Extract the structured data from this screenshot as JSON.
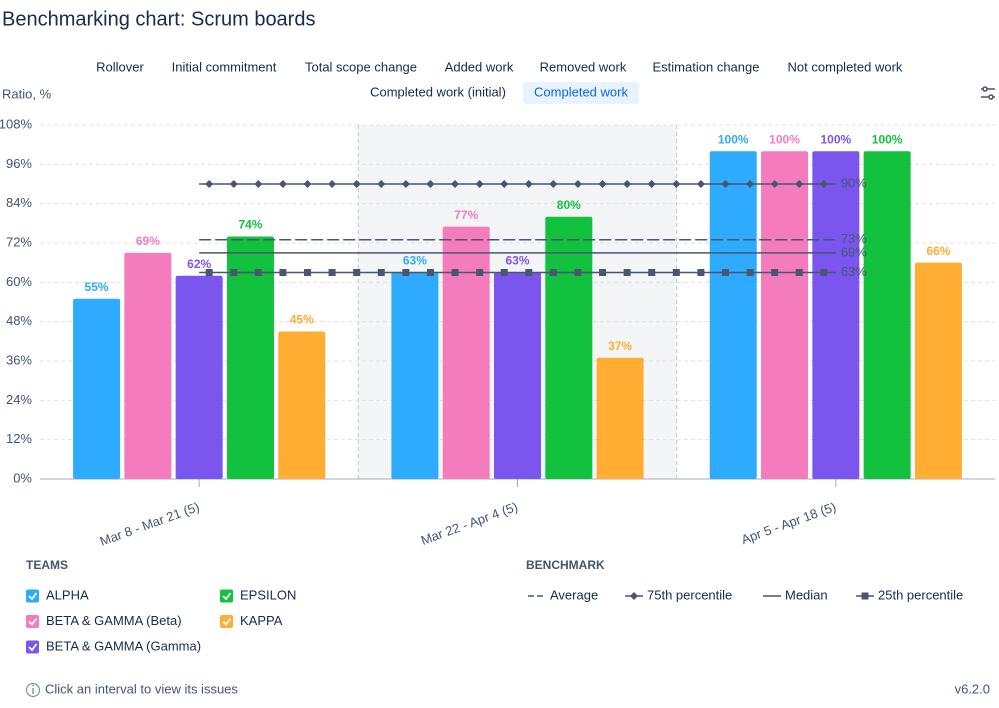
{
  "header": {
    "title": "Benchmarking chart: Scrum boards"
  },
  "tabs": {
    "items": [
      "Rollover",
      "Initial commitment",
      "Total scope change",
      "Added work",
      "Removed work",
      "Estimation change",
      "Not completed work",
      "Completed work (initial)",
      "Completed work"
    ],
    "active": 8
  },
  "chart_data": {
    "type": "bar",
    "y_label": "Ratio, %",
    "categories": [
      "Mar 8 - Mar 21 (5)",
      "Mar 22 - Apr 4 (5)",
      "Apr 5 - Apr 18 (5)"
    ],
    "highlighted_category": 1,
    "ylim": [
      0,
      108
    ],
    "yticks": [
      {
        "value": 0,
        "label": "0%"
      },
      {
        "value": 12,
        "label": "12%"
      },
      {
        "value": 24,
        "label": "24%"
      },
      {
        "value": 36,
        "label": "36%"
      },
      {
        "value": 48,
        "label": "48%"
      },
      {
        "value": 60,
        "label": "60%"
      },
      {
        "value": 72,
        "label": "72%"
      },
      {
        "value": 84,
        "label": "84%"
      },
      {
        "value": 96,
        "label": "96%"
      },
      {
        "value": 108,
        "label": "108%"
      }
    ],
    "grid": true,
    "series": [
      {
        "name": "ALPHA",
        "color": "#2eaaff",
        "values": [
          55,
          63,
          100
        ],
        "value_labels": [
          "55%",
          "63%",
          "100%"
        ]
      },
      {
        "name": "BETA & GAMMA (Beta)",
        "color": "#f47cbd",
        "values": [
          69,
          77,
          100
        ],
        "value_labels": [
          "69%",
          "77%",
          "100%"
        ]
      },
      {
        "name": "BETA & GAMMA (Gamma)",
        "color": "#7a55ee",
        "values": [
          62,
          63,
          100
        ],
        "value_labels": [
          "62%",
          "63%",
          "100%"
        ]
      },
      {
        "name": "EPSILON",
        "color": "#12c13e",
        "values": [
          74,
          80,
          100
        ],
        "value_labels": [
          "74%",
          "80%",
          "100%"
        ]
      },
      {
        "name": "KAPPA",
        "color": "#ffad33",
        "values": [
          45,
          37,
          66
        ],
        "value_labels": [
          "45%",
          "37%",
          "66%"
        ]
      }
    ],
    "benchmark_color": "#4a5570",
    "benchmarks": [
      {
        "name": "Average",
        "style": "dashed",
        "value": 73,
        "value_label": "73%"
      },
      {
        "name": "75th percentile",
        "style": "diamond",
        "value": 90,
        "value_label": "90%"
      },
      {
        "name": "Median",
        "style": "solid",
        "value": 69,
        "value_label": "69%"
      },
      {
        "name": "25th percentile",
        "style": "square",
        "value": 63,
        "value_label": "63%"
      }
    ]
  },
  "legend": {
    "teams_title": "TEAMS",
    "benchmark_title": "BENCHMARK"
  },
  "footer": {
    "note": "Click an interval to view its issues",
    "version": "v6.2.0"
  }
}
